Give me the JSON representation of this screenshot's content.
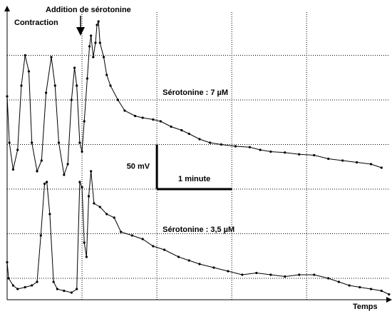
{
  "chart_data": {
    "type": "line",
    "title": "Addition de sérotonine",
    "y_label": "Contraction",
    "x_label": "Temps",
    "xlim": [
      0,
      5.14
    ],
    "ylim": [
      0,
      324
    ],
    "xgrid": [
      1,
      2,
      3,
      4
    ],
    "ygrid": [
      24,
      74,
      124,
      174,
      224,
      274
    ],
    "grid": true,
    "scale_y": {
      "value": 50,
      "label": "50 mV"
    },
    "scale_x": {
      "value": 1,
      "label": "1 minute"
    },
    "series": [
      {
        "name": "Sérotonine : 7  µM",
        "color": "#000000",
        "x": [
          0,
          0.03,
          0.08,
          0.14,
          0.19,
          0.24,
          0.29,
          0.33,
          0.4,
          0.46,
          0.52,
          0.59,
          0.64,
          0.69,
          0.76,
          0.81,
          0.86,
          0.9,
          0.93,
          0.97,
          1,
          1.03,
          1.07,
          1.1,
          1.12,
          1.15,
          1.18,
          1.2,
          1.22,
          1.24,
          1.29,
          1.33,
          1.38,
          1.48,
          1.57,
          1.71,
          1.81,
          1.95,
          2.05,
          2.19,
          2.33,
          2.43,
          2.57,
          2.71,
          2.86,
          3.05,
          3.24,
          3.38,
          3.52,
          3.71,
          3.9,
          4.1,
          4.29,
          4.48,
          4.67,
          4.86,
          5
        ],
        "values": [
          228,
          176,
          146,
          168,
          240,
          274,
          256,
          176,
          144,
          156,
          232,
          272,
          240,
          176,
          140,
          152,
          224,
          260,
          240,
          176,
          166,
          200,
          248,
          284,
          296,
          272,
          288,
          308,
          312,
          288,
          272,
          252,
          240,
          224,
          212,
          206,
          204,
          202,
          200,
          194,
          190,
          186,
          180,
          176,
          174,
          172,
          171,
          168,
          166,
          165,
          163,
          162,
          158,
          156,
          154,
          152,
          148
        ]
      },
      {
        "name": "Sérotonine : 3,5 µM",
        "color": "#000000",
        "x": [
          0,
          0.02,
          0.08,
          0.14,
          0.24,
          0.33,
          0.4,
          0.45,
          0.5,
          0.53,
          0.57,
          0.62,
          0.67,
          0.76,
          0.86,
          0.93,
          0.97,
          1,
          1.03,
          1.06,
          1.09,
          1.12,
          1.16,
          1.24,
          1.33,
          1.43,
          1.52,
          1.67,
          1.81,
          1.95,
          2.1,
          2.29,
          2.43,
          2.57,
          2.76,
          2.95,
          3.14,
          3.33,
          3.52,
          3.71,
          3.9,
          4.1,
          4.29,
          4.43,
          4.57,
          4.71,
          4.86,
          5,
          5.1
        ],
        "values": [
          42,
          24,
          16,
          12,
          14,
          16,
          20,
          72,
          130,
          132,
          96,
          20,
          12,
          10,
          8,
          12,
          132,
          126,
          64,
          48,
          116,
          144,
          108,
          104,
          96,
          92,
          76,
          72,
          68,
          60,
          56,
          48,
          44,
          40,
          36,
          32,
          28,
          30,
          28,
          26,
          28,
          28,
          24,
          20,
          16,
          14,
          12,
          10,
          6
        ]
      }
    ]
  }
}
